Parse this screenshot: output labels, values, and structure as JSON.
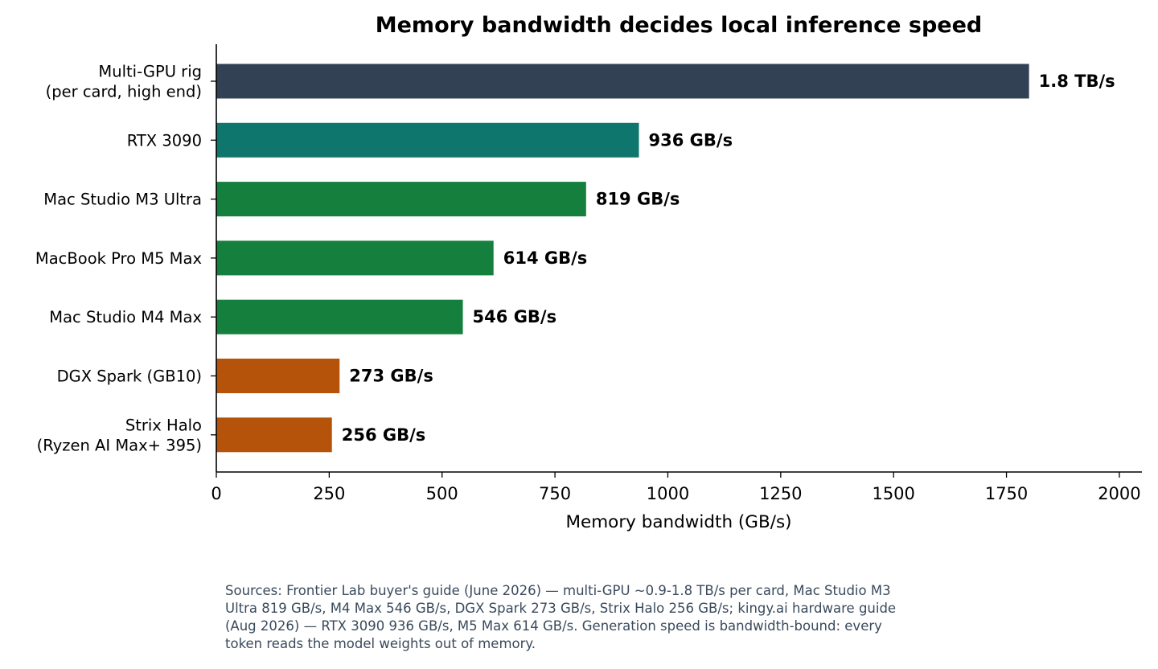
{
  "chart_data": {
    "type": "bar",
    "orientation": "horizontal",
    "title": "Memory bandwidth decides local inference speed",
    "xlabel": "Memory bandwidth (GB/s)",
    "ylabel": "",
    "xlim": [
      0,
      2050
    ],
    "xticks": [
      0,
      250,
      500,
      750,
      1000,
      1250,
      1500,
      1750,
      2000
    ],
    "grid": false,
    "legend": "none",
    "bars": [
      {
        "category_lines": [
          "Multi-GPU rig",
          "(per card, high end)"
        ],
        "value": 1800,
        "value_label": "1.8 TB/s",
        "color": "#334155"
      },
      {
        "category_lines": [
          "RTX 3090"
        ],
        "value": 936,
        "value_label": "936 GB/s",
        "color": "#0f766e"
      },
      {
        "category_lines": [
          "Mac Studio M3 Ultra"
        ],
        "value": 819,
        "value_label": "819 GB/s",
        "color": "#15803d"
      },
      {
        "category_lines": [
          "MacBook Pro M5 Max"
        ],
        "value": 614,
        "value_label": "614 GB/s",
        "color": "#15803d"
      },
      {
        "category_lines": [
          "Mac Studio M4 Max"
        ],
        "value": 546,
        "value_label": "546 GB/s",
        "color": "#15803d"
      },
      {
        "category_lines": [
          "DGX Spark (GB10)"
        ],
        "value": 273,
        "value_label": "273 GB/s",
        "color": "#b45309"
      },
      {
        "category_lines": [
          "Strix Halo",
          "(Ryzen AI Max+ 395)"
        ],
        "value": 256,
        "value_label": "256 GB/s",
        "color": "#b45309"
      }
    ]
  },
  "sources_note": "Sources: Frontier Lab buyer's guide (June 2026) — multi-GPU ~0.9-1.8 TB/s per card, Mac Studio M3 Ultra 819 GB/s, M4 Max 546 GB/s, DGX Spark 273 GB/s, Strix Halo 256 GB/s; kingy.ai hardware guide (Aug 2026) — RTX 3090 936 GB/s, M5 Max 614 GB/s. Generation speed is bandwidth-bound: every token reads the model weights out of memory."
}
